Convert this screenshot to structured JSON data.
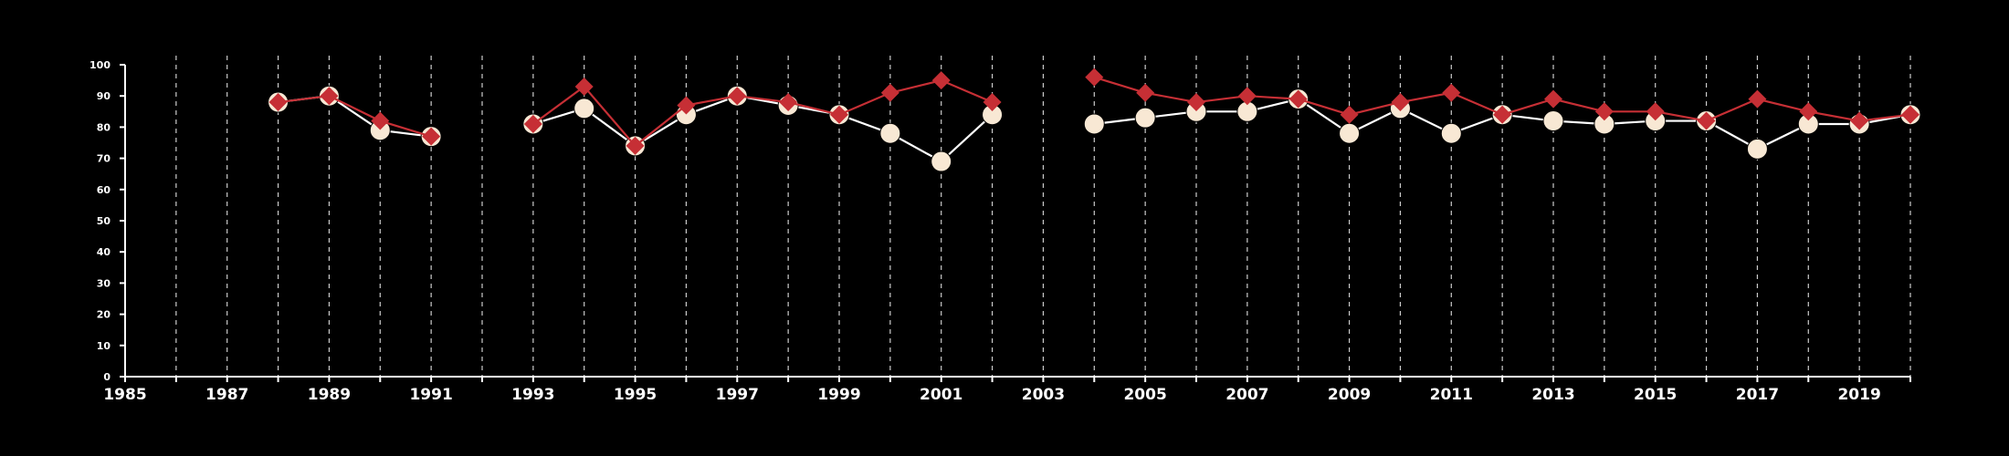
{
  "colors": {
    "background": "#000000",
    "axis": "#ffffff",
    "grid": "#cccccc",
    "series_a_line": "#ffffff",
    "series_a_marker": "#f8e8d4",
    "series_b": "#c62f35"
  },
  "chart_data": {
    "type": "line",
    "title": "",
    "xlabel": "",
    "ylabel": "",
    "xlim": [
      1985,
      2020
    ],
    "ylim": [
      0,
      100
    ],
    "x_ticks": [
      "1985",
      "1987",
      "1989",
      "1991",
      "1993",
      "1995",
      "1997",
      "1999",
      "2001",
      "2003",
      "2005",
      "2007",
      "2009",
      "2011",
      "2013",
      "2015",
      "2017",
      "2019"
    ],
    "y_ticks": [
      "0",
      "10",
      "20",
      "30",
      "40",
      "50",
      "60",
      "70",
      "80",
      "90",
      "100"
    ],
    "grid": "vertical dashed lines at every year",
    "legend": "none",
    "series": [
      {
        "marker": "circle",
        "color": "#f8e8d4",
        "points": [
          [
            1988,
            88
          ],
          [
            1989,
            90
          ],
          [
            1990,
            79
          ],
          [
            1991,
            77
          ],
          [
            1993,
            81
          ],
          [
            1994,
            86
          ],
          [
            1995,
            74
          ],
          [
            1996,
            84
          ],
          [
            1997,
            90
          ],
          [
            1998,
            87
          ],
          [
            1999,
            84
          ],
          [
            2000,
            78
          ],
          [
            2001,
            69
          ],
          [
            2002,
            84
          ],
          [
            2004,
            81
          ],
          [
            2005,
            83
          ],
          [
            2006,
            85
          ],
          [
            2007,
            85
          ],
          [
            2008,
            89
          ],
          [
            2009,
            78
          ],
          [
            2010,
            86
          ],
          [
            2011,
            78
          ],
          [
            2012,
            84
          ],
          [
            2013,
            82
          ],
          [
            2014,
            81
          ],
          [
            2015,
            82
          ],
          [
            2016,
            82
          ],
          [
            2017,
            73
          ],
          [
            2018,
            81
          ],
          [
            2019,
            81
          ],
          [
            2020,
            84
          ]
        ]
      },
      {
        "marker": "diamond",
        "color": "#c62f35",
        "points": [
          [
            1988,
            88
          ],
          [
            1989,
            90
          ],
          [
            1990,
            82
          ],
          [
            1991,
            77
          ],
          [
            1993,
            81
          ],
          [
            1994,
            93
          ],
          [
            1995,
            74
          ],
          [
            1996,
            87
          ],
          [
            1997,
            90
          ],
          [
            1998,
            88
          ],
          [
            1999,
            84
          ],
          [
            2000,
            91
          ],
          [
            2001,
            95
          ],
          [
            2002,
            88
          ],
          [
            2004,
            96
          ],
          [
            2005,
            91
          ],
          [
            2006,
            88
          ],
          [
            2007,
            90
          ],
          [
            2008,
            89
          ],
          [
            2009,
            84
          ],
          [
            2010,
            88
          ],
          [
            2011,
            91
          ],
          [
            2012,
            84
          ],
          [
            2013,
            89
          ],
          [
            2014,
            85
          ],
          [
            2015,
            85
          ],
          [
            2016,
            82
          ],
          [
            2017,
            89
          ],
          [
            2018,
            85
          ],
          [
            2019,
            82
          ],
          [
            2020,
            84
          ]
        ]
      }
    ]
  }
}
